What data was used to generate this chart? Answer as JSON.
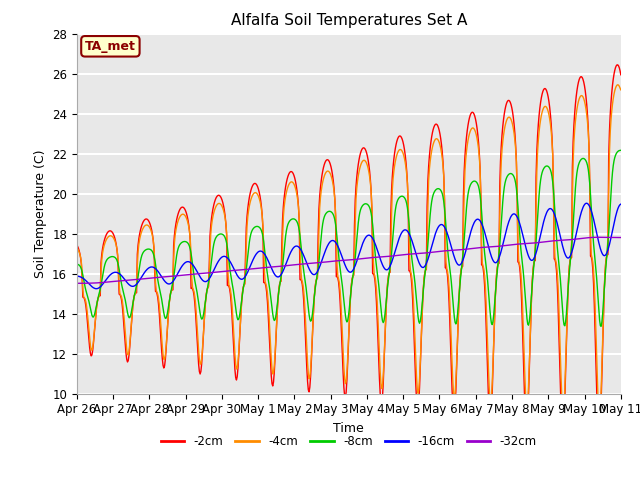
{
  "title": "Alfalfa Soil Temperatures Set A",
  "xlabel": "Time",
  "ylabel": "Soil Temperature (C)",
  "ylim": [
    10,
    28
  ],
  "background_color": "#e8e8e8",
  "grid_color": "white",
  "annotation_text": "TA_met",
  "annotation_color": "#8B0000",
  "annotation_bg": "#ffffcc",
  "series_colors": [
    "#FF0000",
    "#FF8C00",
    "#00CC00",
    "#0000FF",
    "#9900CC"
  ],
  "series_labels": [
    "-2cm",
    "-4cm",
    "-8cm",
    "-16cm",
    "-32cm"
  ],
  "tick_labels": [
    "Apr 26",
    "Apr 27",
    "Apr 28",
    "Apr 29",
    "Apr 30",
    "May 1",
    "May 2",
    "May 3",
    "May 4",
    "May 5",
    "May 6",
    "May 7",
    "May 8",
    "May 9",
    "May 10",
    "May 11"
  ],
  "tick_positions": [
    0,
    1,
    2,
    3,
    4,
    5,
    6,
    7,
    8,
    9,
    10,
    11,
    12,
    13,
    14,
    15
  ],
  "n_days": 15,
  "pts_per_day": 48
}
